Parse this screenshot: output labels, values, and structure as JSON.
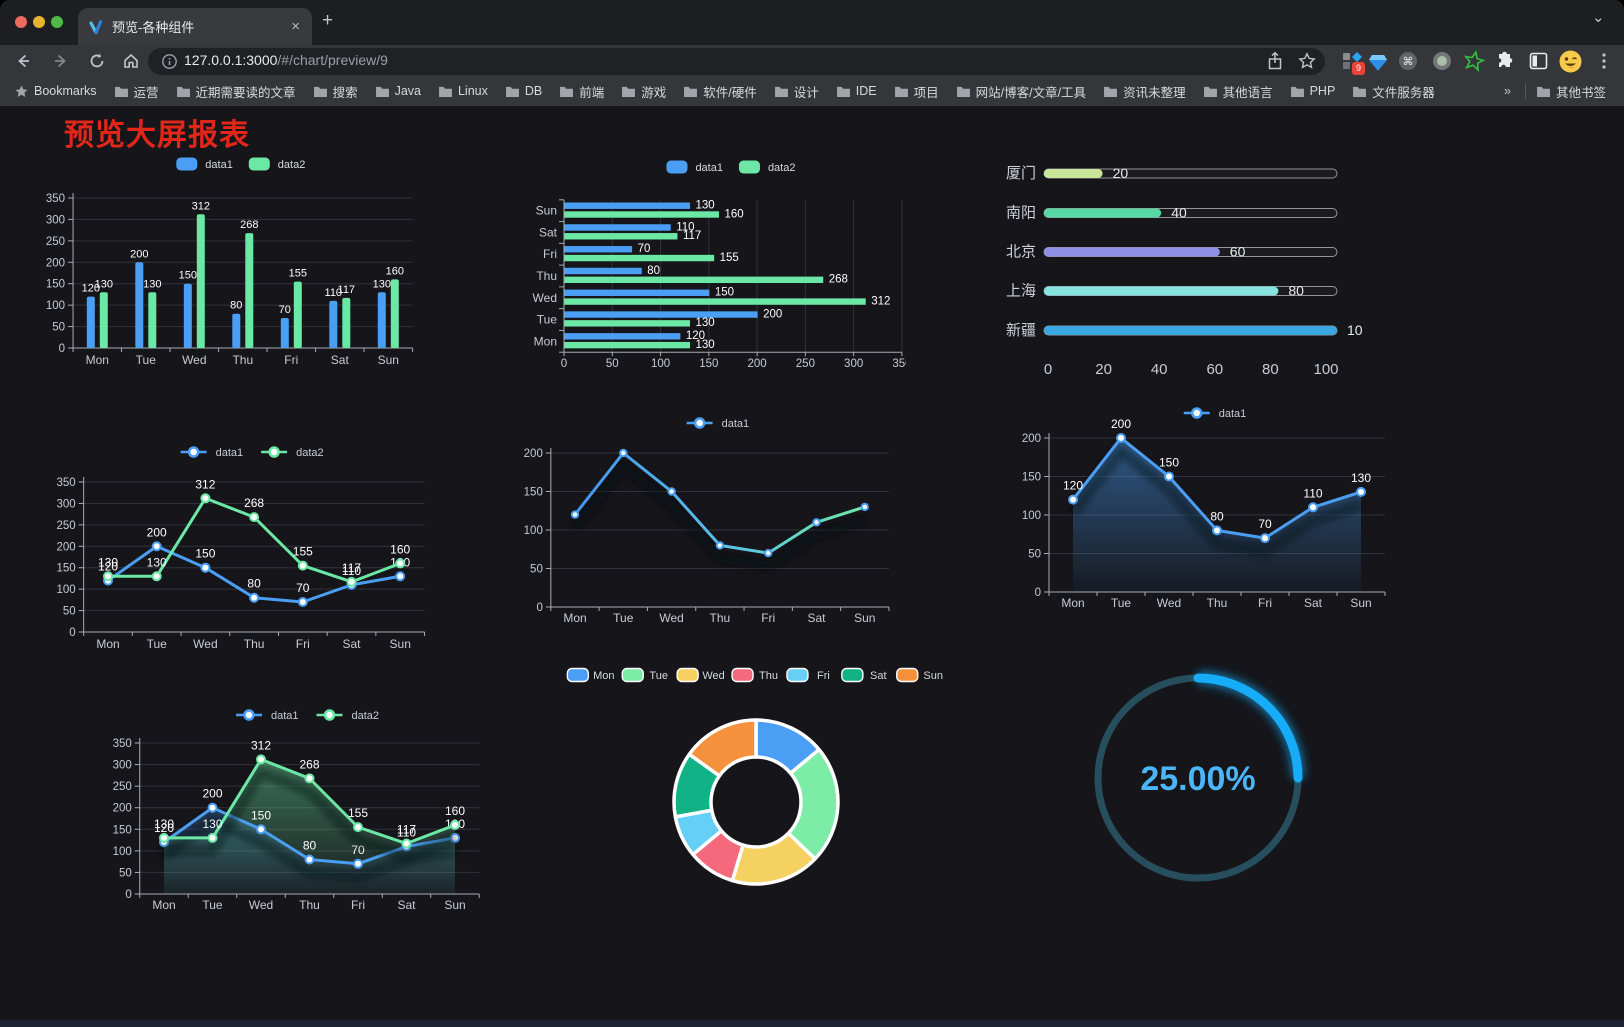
{
  "browser": {
    "tab": {
      "title": "预览-各种组件",
      "close_icon": "×"
    },
    "new_tab_icon": "+",
    "tab_search_icon": "⌄",
    "url": {
      "host": "127.0.0.1:3000",
      "path": "/#/chart/preview/9"
    },
    "extensions_badge": "9",
    "bookmarks_bar": {
      "star_label": "Bookmarks",
      "folders": [
        "运营",
        "近期需要读的文章",
        "搜索",
        "Java",
        "Linux",
        "DB",
        "前端",
        "游戏",
        "软件/硬件",
        "设计",
        "IDE",
        "项目",
        "网站/博客/文章/工具",
        "资讯未整理",
        "其他语言",
        "PHP",
        "文件服务器"
      ],
      "overflow_chevron": "»",
      "other_bookmarks": "其他书签"
    }
  },
  "page": {
    "title": "预览大屏报表",
    "title_color": "#E3261A",
    "background": "#15151a"
  },
  "palette": {
    "series_blue": "#4A9FF5",
    "series_green": "#6CE8A6",
    "axis_line": "#a8adb3",
    "axis_label": "#c8ccd2",
    "grid_line": "#30333a",
    "value_label": "#ffffff"
  },
  "chart_data": [
    {
      "type": "bar",
      "categories": [
        "Mon",
        "Tue",
        "Wed",
        "Thu",
        "Fri",
        "Sat",
        "Sun"
      ],
      "series": [
        {
          "name": "data1",
          "color": "#4A9FF5",
          "values": [
            120,
            200,
            150,
            80,
            70,
            110,
            130
          ]
        },
        {
          "name": "data2",
          "color": "#6CE8A6",
          "values": [
            130,
            130,
            312,
            268,
            155,
            117,
            160
          ]
        }
      ],
      "ylim": [
        0,
        350
      ],
      "ytick_step": 50,
      "grid": true,
      "legend_position": "top",
      "value_labels": true
    },
    {
      "type": "bar",
      "orientation": "horizontal",
      "categories": [
        "Mon",
        "Tue",
        "Wed",
        "Thu",
        "Fri",
        "Sat",
        "Sun"
      ],
      "display_order_top_to_bottom": [
        "Sun",
        "Sat",
        "Fri",
        "Thu",
        "Wed",
        "Tue",
        "Mon"
      ],
      "series": [
        {
          "name": "data1",
          "color": "#4A9FF5",
          "values": [
            120,
            200,
            150,
            80,
            70,
            110,
            130
          ]
        },
        {
          "name": "data2",
          "color": "#6CE8A6",
          "values": [
            130,
            130,
            312,
            268,
            155,
            117,
            160
          ]
        }
      ],
      "xlim": [
        0,
        350
      ],
      "xtick_step": 50,
      "grid": true,
      "legend_position": "top",
      "value_labels": true
    },
    {
      "type": "bar",
      "subtype": "progress",
      "items": [
        {
          "label": "厦门",
          "value": 20,
          "color": "#C9E69B"
        },
        {
          "label": "南阳",
          "value": 40,
          "color": "#57D9A3"
        },
        {
          "label": "北京",
          "value": 60,
          "color": "#8F90E5"
        },
        {
          "label": "上海",
          "value": 80,
          "color": "#86E3DE"
        },
        {
          "label": "新疆",
          "value": 100,
          "color": "#3AA7E2"
        }
      ],
      "xlim": [
        0,
        100
      ],
      "xticks": [
        0,
        20,
        40,
        60,
        80,
        100
      ],
      "value_labels": true
    },
    {
      "type": "line",
      "categories": [
        "Mon",
        "Tue",
        "Wed",
        "Thu",
        "Fri",
        "Sat",
        "Sun"
      ],
      "series": [
        {
          "name": "data1",
          "color": "#4A9FF5",
          "values": [
            120,
            200,
            150,
            80,
            70,
            110,
            130
          ]
        },
        {
          "name": "data2",
          "color": "#6CE8A6",
          "values": [
            130,
            130,
            312,
            268,
            155,
            117,
            160
          ]
        }
      ],
      "ylim": [
        0,
        350
      ],
      "ytick_step": 50,
      "grid": true,
      "legend_position": "top",
      "value_labels": true
    },
    {
      "type": "line",
      "categories": [
        "Mon",
        "Tue",
        "Wed",
        "Thu",
        "Fri",
        "Sat",
        "Sun"
      ],
      "series": [
        {
          "name": "data1",
          "color": "#4A9FF5",
          "gradient": [
            "#4292F0",
            "#57C0E8",
            "#6FE8A4"
          ],
          "values": [
            120,
            200,
            150,
            80,
            70,
            110,
            130
          ]
        }
      ],
      "ylim": [
        0,
        200
      ],
      "ytick_step": 50,
      "grid": true,
      "legend_position": "top",
      "value_labels": false
    },
    {
      "type": "area",
      "categories": [
        "Mon",
        "Tue",
        "Wed",
        "Thu",
        "Fri",
        "Sat",
        "Sun"
      ],
      "series": [
        {
          "name": "data1",
          "color": "#4A9FF5",
          "values": [
            120,
            200,
            150,
            80,
            70,
            110,
            130
          ]
        }
      ],
      "ylim": [
        0,
        200
      ],
      "ytick_step": 50,
      "grid": true,
      "legend_position": "top",
      "value_labels": true
    },
    {
      "type": "area",
      "categories": [
        "Mon",
        "Tue",
        "Wed",
        "Thu",
        "Fri",
        "Sat",
        "Sun"
      ],
      "series": [
        {
          "name": "data1",
          "color": "#4A9FF5",
          "values": [
            120,
            200,
            150,
            80,
            70,
            110,
            130
          ]
        },
        {
          "name": "data2",
          "color": "#6CE8A6",
          "values": [
            130,
            130,
            312,
            268,
            155,
            117,
            160
          ]
        }
      ],
      "ylim": [
        0,
        350
      ],
      "ytick_step": 50,
      "grid": true,
      "legend_position": "top",
      "value_labels": true
    },
    {
      "type": "pie",
      "donut": true,
      "categories": [
        "Mon",
        "Tue",
        "Wed",
        "Thu",
        "Fri",
        "Sat",
        "Sun"
      ],
      "values": [
        120,
        200,
        150,
        80,
        70,
        110,
        130
      ],
      "colors": [
        "#4A9FF5",
        "#7DECA6",
        "#F5D162",
        "#F5697C",
        "#66CFF5",
        "#10B286",
        "#F5913D"
      ],
      "legend_position": "top"
    },
    {
      "type": "gauge",
      "value": 25,
      "display": "25.00%",
      "arc_color": "#17ACF7",
      "track_color": "#264E5C",
      "text_color": "#4AB5F7"
    }
  ]
}
